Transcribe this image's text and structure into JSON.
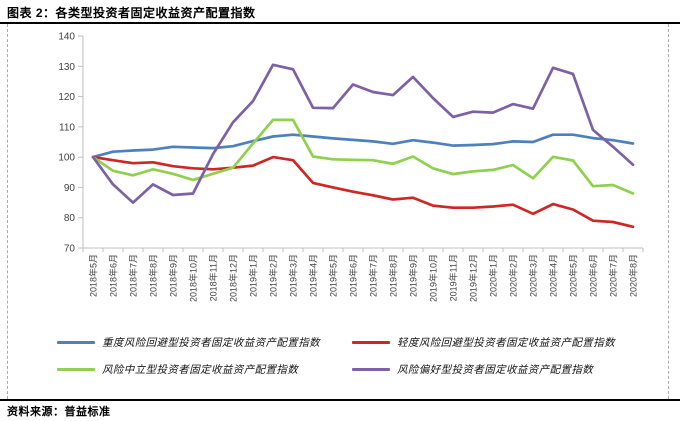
{
  "page": {
    "title": "图表 2：各类型投资者固定收益资产配置指数",
    "source": "资料来源：普益标准"
  },
  "chart_data": {
    "type": "line",
    "title": "各类型投资者固定收益资产配置指数",
    "xlabel": "",
    "ylabel": "",
    "ylim": [
      70,
      140
    ],
    "yticks": [
      70,
      80,
      90,
      100,
      110,
      120,
      130,
      140
    ],
    "grid": false,
    "legend_position": "bottom",
    "axis_color": "#bfbfbf",
    "tick_label_color": "#404040",
    "categories": [
      "2018年5月",
      "2018年6月",
      "2018年7月",
      "2018年8月",
      "2018年9月",
      "2018年10月",
      "2018年11月",
      "2018年12月",
      "2019年1月",
      "2019年2月",
      "2019年3月",
      "2019年4月",
      "2019年5月",
      "2019年6月",
      "2019年7月",
      "2019年8月",
      "2019年9月",
      "2019年10月",
      "2019年11月",
      "2019年12月",
      "2020年1月",
      "2020年2月",
      "2020年3月",
      "2020年4月",
      "2020年5月",
      "2020年6月",
      "2020年7月",
      "2020年8月"
    ],
    "series": [
      {
        "name": "重度风险回避型投资者固定收益资产配置指数",
        "color": "#4e80bc",
        "values": [
          100,
          101.8,
          102.2,
          102.5,
          103.4,
          103.2,
          103,
          103.6,
          105.3,
          106.8,
          107.4,
          106.8,
          106.2,
          105.7,
          105.2,
          104.4,
          105.6,
          104.8,
          103.8,
          104,
          104.3,
          105.2,
          105,
          107.4,
          107.4,
          106.3,
          105.6,
          104.5
        ]
      },
      {
        "name": "轻度风险回避型投资者固定收益资产配置指数",
        "color": "#cd2824",
        "values": [
          100,
          99,
          98,
          98.3,
          97,
          96.3,
          96,
          96.5,
          97.2,
          100,
          99,
          91.5,
          90,
          88.6,
          87.4,
          86,
          86.6,
          84,
          83.3,
          83.3,
          83.7,
          84.3,
          81.3,
          84.5,
          82.7,
          79,
          78.6,
          77
        ]
      },
      {
        "name": "风险中立型投资者固定收益资产配置指数",
        "color": "#8fd04e",
        "values": [
          100,
          95.5,
          94,
          96,
          94.5,
          92.5,
          94.5,
          96.5,
          104.5,
          112.3,
          112.3,
          100.2,
          99.3,
          99.1,
          99,
          97.8,
          100.2,
          96.3,
          94.4,
          95.3,
          95.8,
          97.4,
          93,
          100.1,
          98.9,
          90.4,
          90.8,
          88
        ]
      },
      {
        "name": "风险偏好型投资者固定收益资产配置指数",
        "color": "#7d60a6",
        "values": [
          100,
          91,
          85,
          91,
          87.5,
          88,
          101,
          111.5,
          118.5,
          130.5,
          129,
          116.3,
          116.2,
          124,
          121.5,
          120.5,
          126.5,
          119.5,
          113.3,
          115,
          114.7,
          117.5,
          116,
          129.5,
          127.5,
          109,
          103.4,
          97.5
        ]
      }
    ]
  }
}
